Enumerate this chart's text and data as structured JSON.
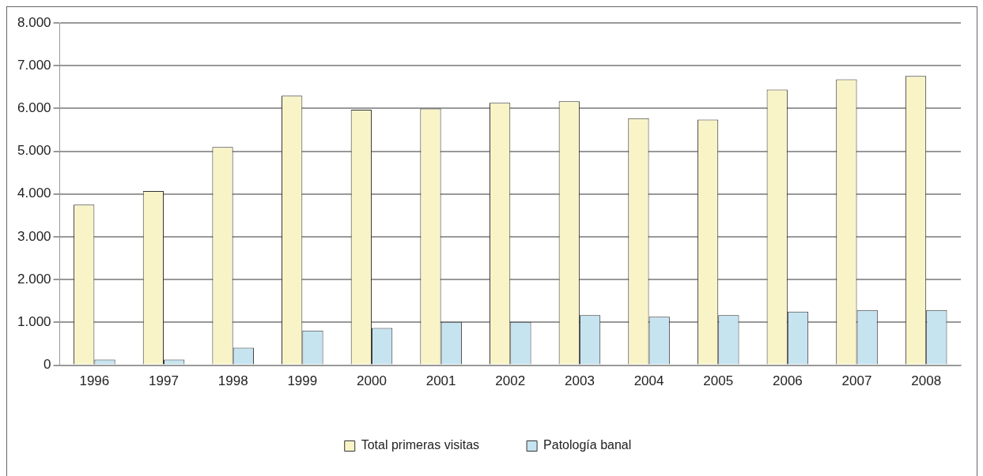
{
  "chart_data": {
    "type": "bar",
    "categories": [
      "1996",
      "1997",
      "1998",
      "1999",
      "2000",
      "2001",
      "2002",
      "2003",
      "2004",
      "2005",
      "2006",
      "2007",
      "2008"
    ],
    "series": [
      {
        "name": "Total primeras visitas",
        "color": "#f8f4c8",
        "values": [
          3750,
          4070,
          5100,
          6300,
          5970,
          6000,
          6130,
          6170,
          5770,
          5740,
          6440,
          6680,
          6760
        ]
      },
      {
        "name": "Patología banal",
        "color": "#c6e4f0",
        "values": [
          130,
          130,
          410,
          810,
          870,
          1010,
          1010,
          1170,
          1130,
          1170,
          1250,
          1290,
          1290
        ]
      }
    ],
    "ylim": [
      0,
      8000
    ],
    "yticks": [
      0,
      {
        "value": 1000,
        "label": "1.000"
      },
      {
        "value": 2000,
        "label": "2.000"
      },
      {
        "value": 3000,
        "label": "3.000"
      },
      {
        "value": 4000,
        "label": "4.000"
      },
      {
        "value": 5000,
        "label": "5.000"
      },
      {
        "value": 6000,
        "label": "6.000"
      },
      {
        "value": 7000,
        "label": "7.000"
      },
      {
        "value": 8000,
        "label": "8.000"
      }
    ],
    "grid": "y",
    "legend": "bottom"
  }
}
